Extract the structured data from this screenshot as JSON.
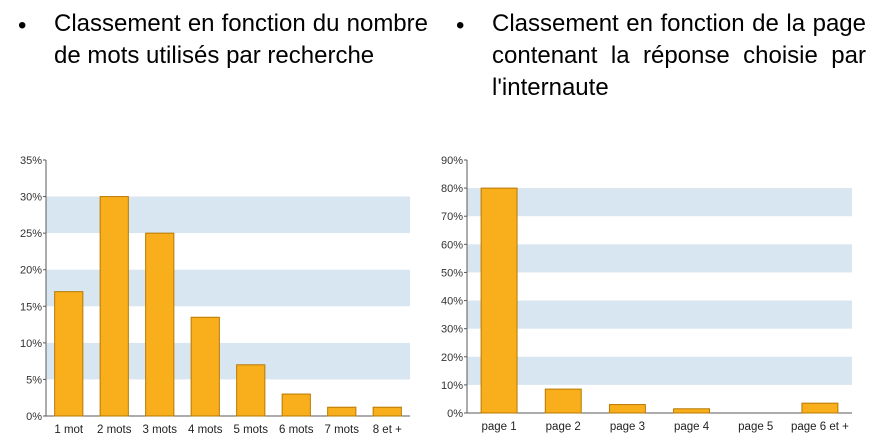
{
  "bullets": [
    {
      "symbol": "•",
      "text": "Classement en fonction du nombre de mots utilisés par recherche"
    },
    {
      "symbol": "•",
      "text": "Classement en fonction de la page contenant la réponse choisie par l'internaute"
    }
  ],
  "colors": {
    "bar": "#F9AE1B",
    "bar_edge": "#B87800",
    "stripe": "#D8E6F1",
    "axis": "#5A5A5A"
  },
  "chart_data": [
    {
      "type": "bar",
      "categories": [
        "1 mot",
        "2 mots",
        "3 mots",
        "4 mots",
        "5 mots",
        "6 mots",
        "7 mots",
        "8 et +"
      ],
      "values": [
        17,
        30,
        25,
        13.5,
        7,
        3,
        1.2,
        1.2
      ],
      "yticks": [
        "0%",
        "5%",
        "10%",
        "15%",
        "20%",
        "25%",
        "30%",
        "35%"
      ],
      "ylim": [
        0,
        35
      ],
      "ystep": 5,
      "grid": "alternating horizontal stripes"
    },
    {
      "type": "bar",
      "categories": [
        "page 1",
        "page 2",
        "page 3",
        "page 4",
        "page 5",
        "page 6 et +"
      ],
      "values": [
        80,
        8.5,
        3,
        1.5,
        0,
        3.5
      ],
      "yticks": [
        "0%",
        "10%",
        "20%",
        "30%",
        "40%",
        "50%",
        "60%",
        "70%",
        "80%",
        "90%"
      ],
      "ylim": [
        0,
        90
      ],
      "ystep": 10,
      "grid": "alternating horizontal stripes"
    }
  ]
}
